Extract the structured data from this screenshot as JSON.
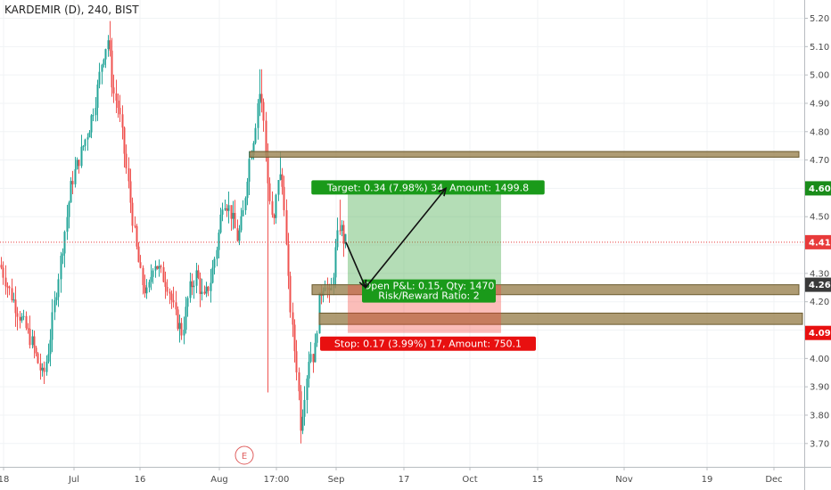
{
  "title": "KARDEMIR (D), 240, BIST",
  "chart_data": {
    "type": "candlestick",
    "symbol": "KARDEMIR (D)",
    "interval": "240",
    "exchange": "BIST",
    "ylim": [
      3.62,
      5.25
    ],
    "y_ticks": [
      "3.70",
      "3.80",
      "3.90",
      "4.00",
      "4.10",
      "4.20",
      "4.30",
      "4.40",
      "4.50",
      "4.60",
      "4.70",
      "4.80",
      "4.90",
      "5.00",
      "5.10",
      "5.20"
    ],
    "x_ticks": [
      "18",
      "Jul",
      "16",
      "Aug",
      "17:00",
      "Sep",
      "17",
      "Oct",
      "15",
      "Nov",
      "19",
      "Dec"
    ],
    "price_tags": [
      {
        "label": "4.60",
        "color": "#1a8c1a",
        "value": 4.6
      },
      {
        "label": "4.41",
        "color": "#e83a3a",
        "value": 4.41
      },
      {
        "label": "4.26",
        "color": "#3a3a3a",
        "value": 4.26
      },
      {
        "label": "4.09",
        "color": "#e81010",
        "value": 4.09
      }
    ],
    "current_price": 4.41,
    "zones": [
      {
        "name": "resistance",
        "from": 4.71,
        "to": 4.73
      },
      {
        "name": "support-upper",
        "from": 4.225,
        "to": 4.26
      },
      {
        "name": "support-lower",
        "from": 4.12,
        "to": 4.16
      }
    ],
    "position": {
      "entry": 4.26,
      "target": 4.6,
      "stop": 4.09,
      "target_label": "Target: 0.34 (7.98%) 34, Amount: 1499.8",
      "stop_label": "Stop: 0.17 (3.99%) 17, Amount: 750.1",
      "pnl_label": "Open P&L: 0.15, Qty: 1470",
      "rr_label": "Risk/Reward Ratio: 2"
    },
    "projection_path": [
      4.41,
      4.25,
      4.6
    ],
    "earnings_marker": "E",
    "colors": {
      "up": "#26a69a",
      "down": "#ef5350",
      "profit": "#4caf50",
      "loss": "#f44336",
      "zone": "#a08a5a"
    }
  }
}
